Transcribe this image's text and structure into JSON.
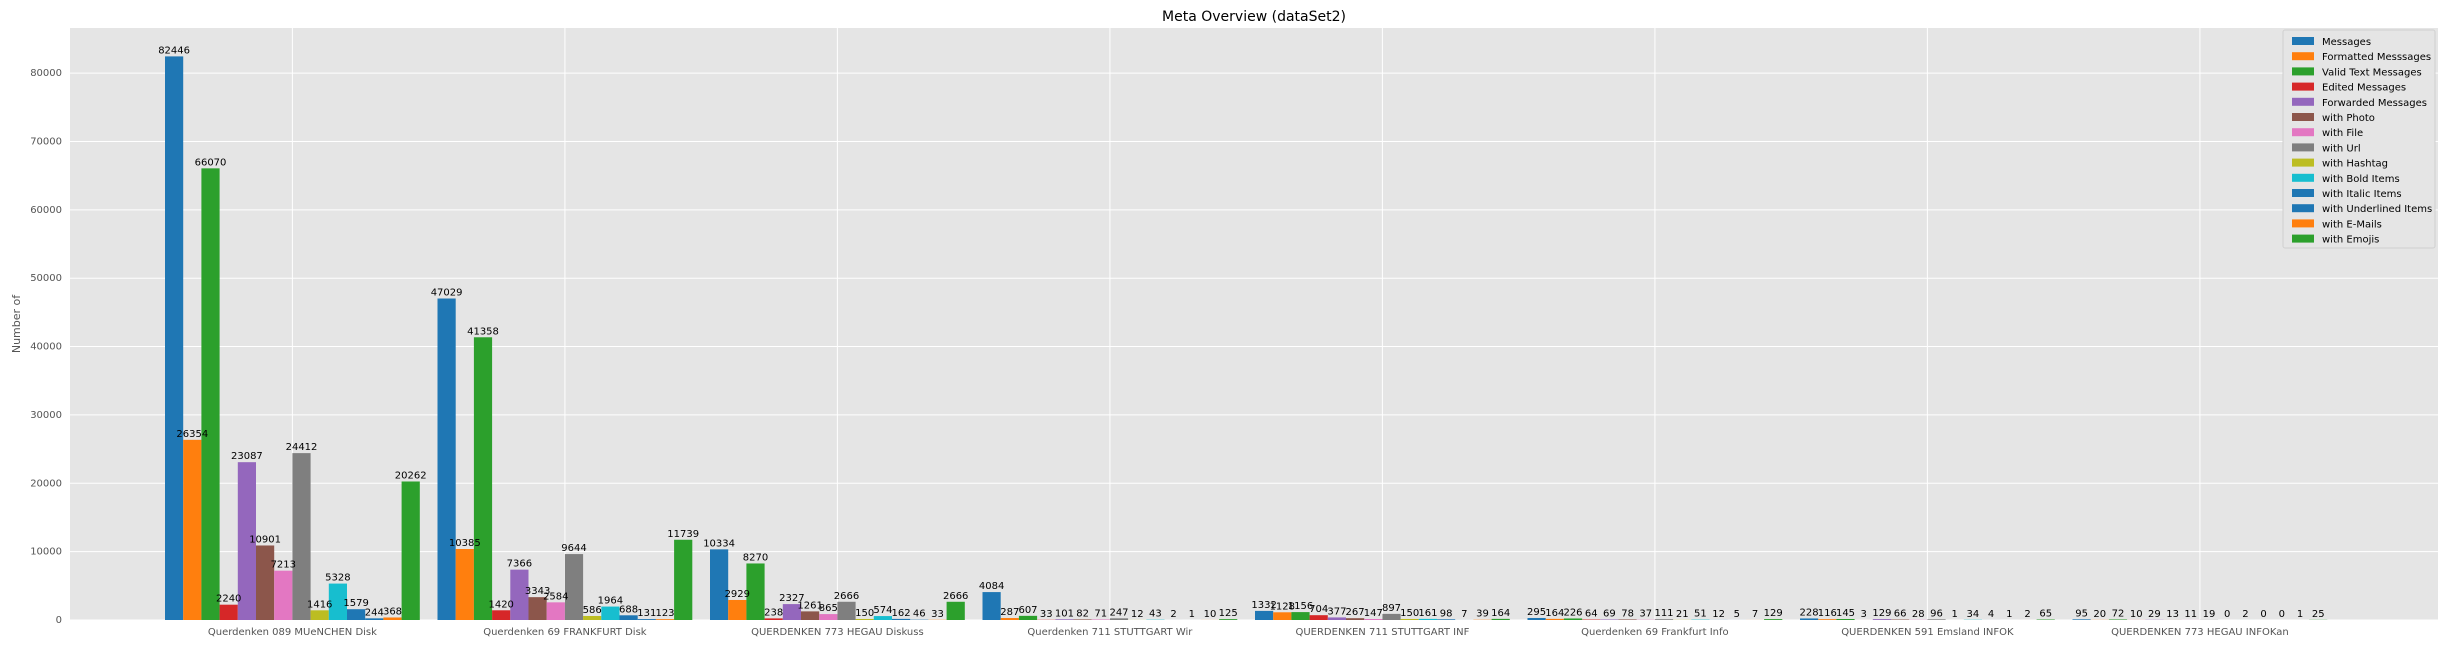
{
  "chart_data": {
    "type": "bar",
    "title": "Meta Overview (dataSet2)",
    "xlabel": "",
    "ylabel": "Number of",
    "ylim": [
      0,
      86600
    ],
    "yticks": [
      0,
      10000,
      20000,
      30000,
      40000,
      50000,
      60000,
      70000,
      80000
    ],
    "grid": true,
    "legend_position": "top-right",
    "categories": [
      "Querdenken 089  MUeNCHEN  Disk",
      "Querdenken 69  FRANKFURT  Disk",
      "QUERDENKEN 773  HEGAU  Diskuss",
      "Querdenken 711  STUTTGART  Wir",
      "QUERDENKEN 711  STUTTGART  INF",
      "Querdenken 69 Frankfurt  Info",
      "QUERDENKEN 591  Emsland  INFOK",
      "QUERDENKEN 773  HEGAU  INFOKan"
    ],
    "series": [
      {
        "name": "Messages",
        "color": "#1f77b4",
        "values": [
          82446,
          47029,
          10334,
          4084,
          1332,
          295,
          228,
          95
        ]
      },
      {
        "name": "Formatted Messsages",
        "color": "#ff7f0e",
        "values": [
          26354,
          10385,
          2929,
          287,
          1128,
          164,
          116,
          20
        ]
      },
      {
        "name": "Valid Text Messages",
        "color": "#2ca02c",
        "values": [
          66070,
          41358,
          8270,
          607,
          1156,
          226,
          145,
          72
        ]
      },
      {
        "name": "Edited Messages",
        "color": "#d62728",
        "values": [
          2240,
          1420,
          238,
          33,
          704,
          64,
          3,
          10
        ]
      },
      {
        "name": "Forwarded Messages",
        "color": "#9467bd",
        "values": [
          23087,
          7366,
          2327,
          101,
          377,
          69,
          129,
          29
        ]
      },
      {
        "name": "with Photo",
        "color": "#8c564b",
        "values": [
          10901,
          3343,
          1261,
          82,
          267,
          78,
          66,
          13
        ]
      },
      {
        "name": "with File",
        "color": "#e377c2",
        "values": [
          7213,
          2584,
          865,
          71,
          147,
          37,
          28,
          11
        ]
      },
      {
        "name": "with Url",
        "color": "#7f7f7f",
        "values": [
          24412,
          9644,
          2666,
          247,
          897,
          111,
          96,
          19
        ]
      },
      {
        "name": "with Hashtag",
        "color": "#bcbd22",
        "values": [
          1416,
          586,
          150,
          12,
          150,
          21,
          1,
          0
        ]
      },
      {
        "name": "with Bold Items",
        "color": "#17becf",
        "values": [
          5328,
          1964,
          574,
          43,
          161,
          51,
          34,
          2
        ]
      },
      {
        "name": "with Italic Items",
        "color": "#1f77b4",
        "values": [
          1579,
          688,
          162,
          2,
          98,
          12,
          4,
          0
        ]
      },
      {
        "name": "with Underlined Items",
        "color": "#1f77b4",
        "values": [
          244,
          131,
          46,
          1,
          7,
          5,
          1,
          0
        ]
      },
      {
        "name": "with E-Mails",
        "color": "#ff7f0e",
        "values": [
          368,
          123,
          33,
          10,
          39,
          7,
          2,
          1
        ]
      },
      {
        "name": "with Emojis",
        "color": "#2ca02c",
        "values": [
          20262,
          11739,
          2666,
          125,
          164,
          129,
          65,
          25
        ]
      }
    ]
  }
}
